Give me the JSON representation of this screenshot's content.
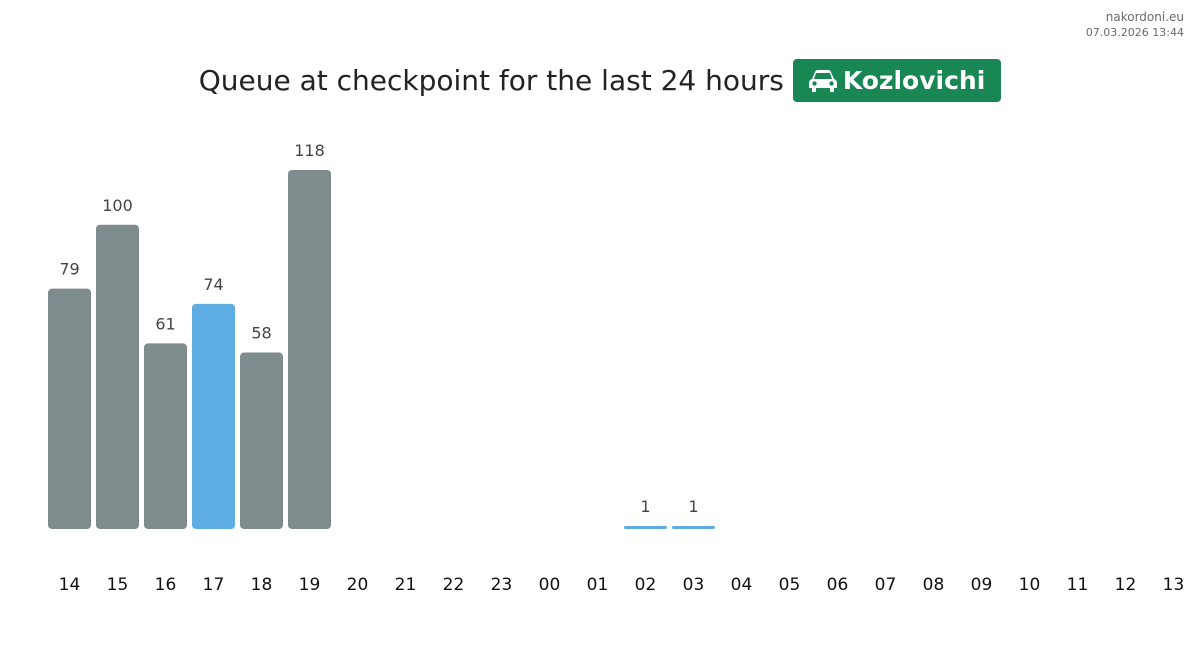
{
  "header": {
    "site": "nakordoni.eu",
    "timestamp": "07.03.2026 13:44"
  },
  "title": {
    "text": "Queue at checkpoint for the last 24 hours",
    "checkpoint": "Kozlovichi",
    "badge_icon": "car-icon",
    "badge_color": "#198754"
  },
  "colors": {
    "bar": "#7f8c8d",
    "highlight": "#5dade2",
    "label": "#444444",
    "tick": "#111111"
  },
  "chart_data": {
    "type": "bar",
    "title": "Queue at checkpoint for the last 24 hours",
    "xlabel": "",
    "ylabel": "",
    "categories": [
      "14",
      "15",
      "16",
      "17",
      "18",
      "19",
      "20",
      "21",
      "22",
      "23",
      "00",
      "01",
      "02",
      "03",
      "04",
      "05",
      "06",
      "07",
      "08",
      "09",
      "10",
      "11",
      "12",
      "13"
    ],
    "values": [
      79,
      100,
      61,
      74,
      58,
      118,
      null,
      null,
      null,
      null,
      null,
      null,
      1,
      1,
      null,
      null,
      null,
      null,
      null,
      null,
      null,
      null,
      null,
      null
    ],
    "highlighted": [
      "17",
      "02",
      "03"
    ],
    "ylim": [
      0,
      118
    ],
    "grid": false,
    "legend": "none"
  }
}
